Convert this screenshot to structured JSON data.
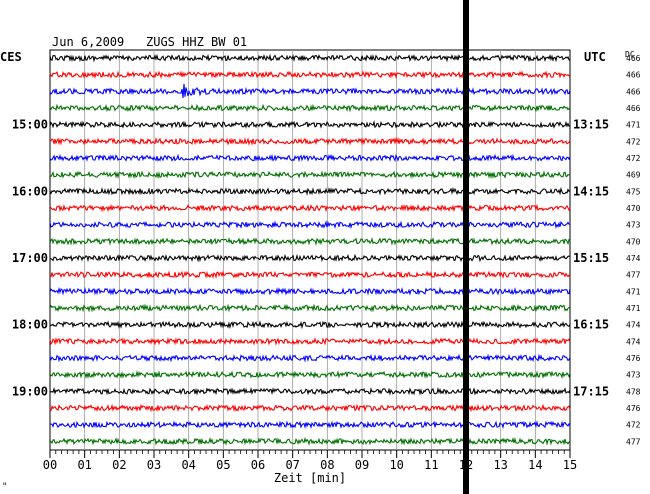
{
  "header": {
    "date": "Jun 6,2009",
    "station": "ZUGS HHZ BW 01"
  },
  "labels": {
    "left_zone": "CES",
    "right_zone": "UTC",
    "dc": "DC",
    "xlabel": "Zeit [min]",
    "corner_mark": "\""
  },
  "chart_data": {
    "type": "line",
    "title": "Jun 6,2009   ZUGS HHZ BW 01",
    "xlabel": "Zeit [min]",
    "xlim": [
      0,
      15
    ],
    "x_ticks": [
      "00",
      "01",
      "02",
      "03",
      "04",
      "05",
      "06",
      "07",
      "08",
      "09",
      "10",
      "11",
      "12",
      "13",
      "14",
      "15"
    ],
    "rows": 24,
    "trace_colors": [
      "#000000",
      "#ff0000",
      "#0000ff",
      "#007000"
    ],
    "left_hour_labels": [
      {
        "row": 4,
        "text": "15:00"
      },
      {
        "row": 8,
        "text": "16:00"
      },
      {
        "row": 12,
        "text": "17:00"
      },
      {
        "row": 16,
        "text": "18:00"
      },
      {
        "row": 20,
        "text": "19:00"
      }
    ],
    "right_time_labels": [
      {
        "row": 4,
        "text": "13:15"
      },
      {
        "row": 8,
        "text": "14:15"
      },
      {
        "row": 12,
        "text": "15:15"
      },
      {
        "row": 16,
        "text": "16:15"
      },
      {
        "row": 20,
        "text": "17:15"
      }
    ],
    "dc_values": [
      "466",
      "466",
      "466",
      "466",
      "471",
      "472",
      "472",
      "469",
      "475",
      "470",
      "473",
      "470",
      "474",
      "477",
      "471",
      "471",
      "474",
      "474",
      "476",
      "473",
      "478",
      "476",
      "472",
      "477"
    ],
    "event": {
      "row": 2,
      "minute": 3.8
    },
    "current_time_minute": 12.0
  }
}
